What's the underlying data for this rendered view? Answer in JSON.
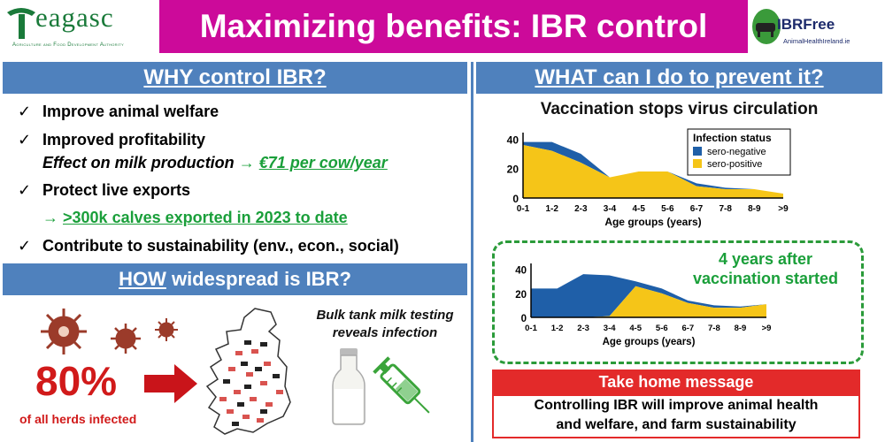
{
  "header": {
    "logo_word": "eagasc",
    "logo_sub": "Agriculture and Food Development Authority",
    "title": "Maximizing benefits: IBR control",
    "ibr_logo": "IBRFree",
    "ibr_logo_sub": "AnimalHealthIreland.ie"
  },
  "why": {
    "heading": "WHY control IBR?",
    "items": [
      "Improve animal welfare",
      "Improved profitability",
      "Protect live exports",
      "Contribute to sustainability (env., econ., social)"
    ],
    "milk_effect": "Effect on milk production",
    "milk_value": "€71 per cow/year",
    "exports_value": ">300k calves exported in 2023 to date",
    "check_icon": "check-mark-icon"
  },
  "how": {
    "heading_prefix": "HOW",
    "heading_rest": " widespread is IBR?",
    "percent": "80%",
    "percent_caption": "of all herds infected",
    "bulk_line1": "Bulk tank milk testing",
    "bulk_line2": "reveals infection"
  },
  "what": {
    "heading": "WHAT can I do to prevent it?",
    "subtitle": "Vaccination stops virus circulation",
    "box_note_1": "4 years after",
    "box_note_2": "vaccination started"
  },
  "take_home": {
    "heading": "Take home message",
    "line1": "Controlling IBR will improve animal health",
    "line2": "and welfare, and farm sustainability"
  },
  "colors": {
    "magenta": "#cc0a9a",
    "section_blue": "#4f81bd",
    "negative": "#1f5fa8",
    "positive": "#f5c518",
    "accent_green": "#1a9f3a",
    "alert_red": "#e32a2a"
  },
  "chart_data": [
    {
      "type": "area",
      "stacked": true,
      "title": "Vaccination stops virus circulation",
      "xlabel": "Age groups (years)",
      "ylabel": "",
      "categories": [
        "0-1",
        "1-2",
        "2-3",
        "3-4",
        "4-5",
        "5-6",
        "6-7",
        "7-8",
        "8-9",
        ">9"
      ],
      "yticks": [
        0,
        20,
        40
      ],
      "ylim": [
        0,
        42
      ],
      "legend_title": "Infection status",
      "legend_position": "top-right",
      "series": [
        {
          "name": "sero-positive",
          "values": [
            36,
            32,
            24,
            14,
            18,
            18,
            8,
            6,
            6,
            3
          ]
        },
        {
          "name": "sero-negative",
          "values": [
            2,
            6,
            6,
            0,
            0,
            0,
            2,
            1,
            0,
            0
          ]
        }
      ]
    },
    {
      "type": "area",
      "stacked": true,
      "xlabel": "Age groups (years)",
      "ylabel": "",
      "categories": [
        "0-1",
        "1-2",
        "2-3",
        "3-4",
        "4-5",
        "5-6",
        "6-7",
        "7-8",
        "8-9",
        ">9"
      ],
      "yticks": [
        0,
        20,
        40
      ],
      "ylim": [
        0,
        42
      ],
      "series": [
        {
          "name": "sero-positive",
          "values": [
            0,
            0,
            0,
            1,
            26,
            20,
            12,
            8,
            8,
            11
          ]
        },
        {
          "name": "sero-negative",
          "values": [
            24,
            24,
            36,
            34,
            4,
            4,
            2,
            2,
            1,
            0
          ]
        }
      ]
    }
  ]
}
